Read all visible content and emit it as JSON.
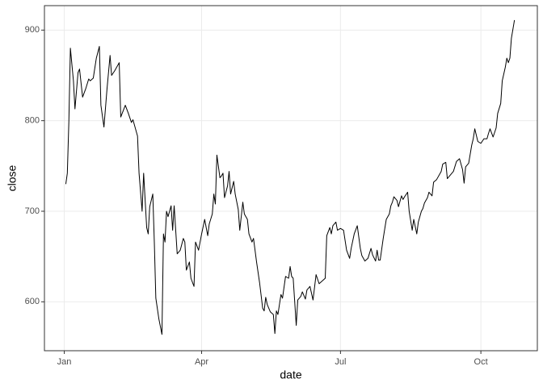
{
  "chart_data": {
    "type": "line",
    "x_label": "date",
    "y_label": "close",
    "x": [
      1,
      2,
      3,
      4,
      6,
      7,
      9,
      10,
      12,
      14,
      16,
      17,
      19,
      21,
      23,
      24,
      26,
      28,
      30,
      31,
      33,
      36,
      37,
      40,
      42,
      44,
      45,
      48,
      49,
      51,
      52,
      54,
      55,
      56,
      58,
      59,
      60,
      62,
      64,
      65,
      66,
      67,
      68,
      70,
      71,
      72,
      74,
      76,
      78,
      79,
      80,
      82,
      83,
      85,
      86,
      88,
      90,
      92,
      94,
      95,
      97,
      98,
      99,
      100,
      102,
      103,
      104,
      105,
      107,
      108,
      109,
      111,
      112,
      114,
      115,
      117,
      118,
      120,
      121,
      123,
      124,
      126,
      128,
      130,
      131,
      132,
      133,
      135,
      137,
      138,
      139,
      140,
      142,
      143,
      145,
      147,
      148,
      149,
      150,
      152,
      153,
      155,
      156,
      158,
      159,
      161,
      163,
      165,
      167,
      169,
      171,
      172,
      174,
      175,
      176,
      178,
      179,
      181,
      183,
      185,
      187,
      188,
      190,
      192,
      194,
      195,
      197,
      199,
      201,
      202,
      204,
      205,
      206,
      207,
      209,
      211,
      213,
      214,
      215,
      216,
      218,
      219,
      221,
      222,
      223,
      225,
      226,
      228,
      229,
      231,
      232,
      234,
      235,
      236,
      238,
      239,
      241,
      242,
      244,
      247,
      248,
      250,
      251,
      253,
      255,
      257,
      259,
      261,
      262,
      263,
      265,
      267,
      268,
      269,
      271,
      273,
      275,
      277,
      278,
      279,
      281,
      283,
      284,
      286,
      287,
      289,
      290,
      291,
      292,
      293,
      295
    ],
    "series": [
      {
        "name": "close",
        "color": "#000000",
        "values": [
          730,
          742,
          799,
          880,
          844,
          813,
          853,
          857,
          826,
          835,
          846,
          844,
          847,
          869,
          882,
          817,
          793,
          835,
          872,
          850,
          855,
          864,
          804,
          817,
          808,
          798,
          801,
          783,
          742,
          700,
          742,
          682,
          675,
          705,
          719,
          666,
          604,
          581,
          564,
          675,
          666,
          700,
          694,
          706,
          679,
          706,
          653,
          657,
          670,
          666,
          635,
          644,
          626,
          617,
          666,
          657,
          675,
          691,
          673,
          686,
          697,
          719,
          708,
          762,
          737,
          739,
          742,
          715,
          728,
          744,
          719,
          733,
          719,
          702,
          679,
          710,
          697,
          691,
          675,
          666,
          670,
          644,
          621,
          593,
          590,
          605,
          597,
          589,
          586,
          565,
          590,
          586,
          608,
          604,
          628,
          626,
          639,
          628,
          626,
          574,
          602,
          606,
          611,
          603,
          613,
          617,
          602,
          630,
          620,
          623,
          626,
          673,
          682,
          675,
          684,
          688,
          679,
          681,
          679,
          657,
          648,
          659,
          675,
          684,
          659,
          651,
          645,
          648,
          659,
          652,
          645,
          657,
          646,
          646,
          670,
          691,
          697,
          706,
          710,
          716,
          712,
          705,
          717,
          713,
          716,
          721,
          700,
          679,
          691,
          675,
          688,
          700,
          703,
          709,
          715,
          721,
          717,
          732,
          735,
          744,
          752,
          754,
          736,
          740,
          744,
          755,
          758,
          746,
          731,
          749,
          753,
          773,
          780,
          791,
          777,
          775,
          780,
          780,
          786,
          791,
          782,
          792,
          808,
          819,
          844,
          859,
          869,
          864,
          869,
          891,
          911
        ]
      }
    ],
    "xlim": [
      -13,
      310
    ],
    "xticks": [
      {
        "value": 0,
        "label": "Jan"
      },
      {
        "value": 90,
        "label": "Apr"
      },
      {
        "value": 181,
        "label": "Jul"
      },
      {
        "value": 273,
        "label": "Oct"
      }
    ],
    "ylim": [
      546,
      927
    ],
    "yticks": [
      600,
      700,
      800,
      900
    ],
    "grid": true
  }
}
